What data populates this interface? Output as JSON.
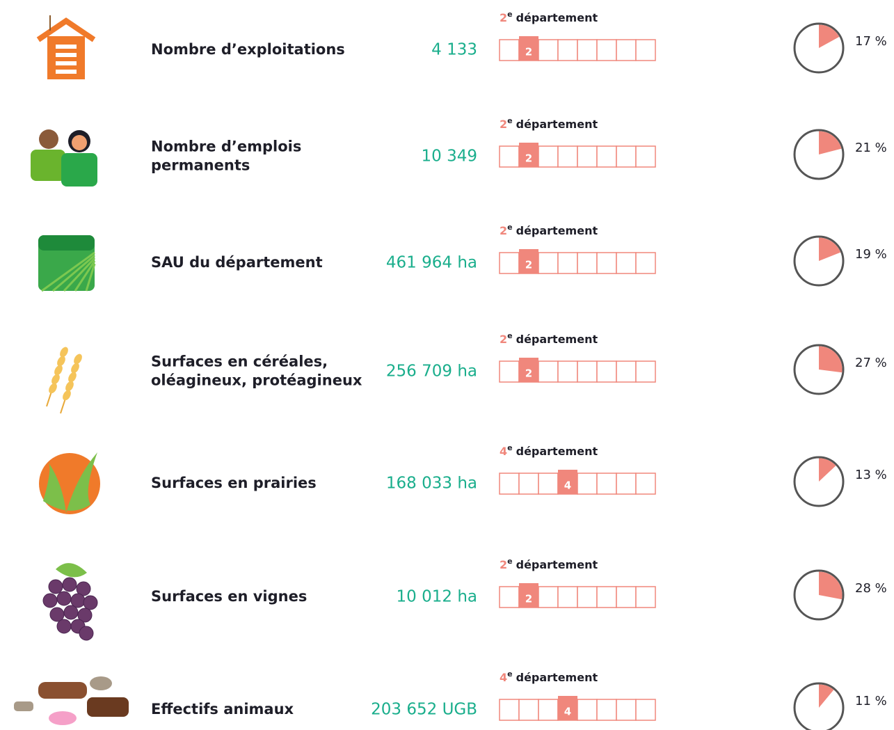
{
  "rows": [
    {
      "label": [
        "Nombre d’exploitations"
      ],
      "value": "4 133",
      "rank": 2,
      "rank_suffix": "e",
      "rank_word": "département",
      "percent": {
        "value": 17,
        "label": "17 %"
      }
    },
    {
      "label": [
        "Nombre d’emplois",
        "permanents"
      ],
      "value": "10 349",
      "rank": 2,
      "rank_suffix": "e",
      "rank_word": "département",
      "percent": {
        "value": 21,
        "label": "21 %"
      }
    },
    {
      "label": [
        "SAU du département"
      ],
      "value": "461 964 ha",
      "rank": 2,
      "rank_suffix": "e",
      "rank_word": "département",
      "percent": {
        "value": 19,
        "label": "19 %"
      }
    },
    {
      "label": [
        "Surfaces en céréales,",
        "oléagineux, protéagineux"
      ],
      "value": "256 709 ha",
      "rank": 2,
      "rank_suffix": "e",
      "rank_word": "département",
      "percent": {
        "value": 27,
        "label": "27 %"
      }
    },
    {
      "label": [
        "Surfaces en prairies"
      ],
      "value": "168 033 ha",
      "rank": 4,
      "rank_suffix": "e",
      "rank_word": "département",
      "percent": {
        "value": 13,
        "label": "13 %"
      }
    },
    {
      "label": [
        "Surfaces en vignes"
      ],
      "value": "10 012 ha",
      "rank": 2,
      "rank_suffix": "e",
      "rank_word": "département",
      "percent": {
        "value": 28,
        "label": "28 %"
      }
    },
    {
      "label": [
        "Effectifs animaux"
      ],
      "value": "203 652 UGB",
      "rank": 4,
      "rank_suffix": "e",
      "rank_word": "département",
      "percent": {
        "value": 11,
        "label": "11 %"
      }
    }
  ]
}
